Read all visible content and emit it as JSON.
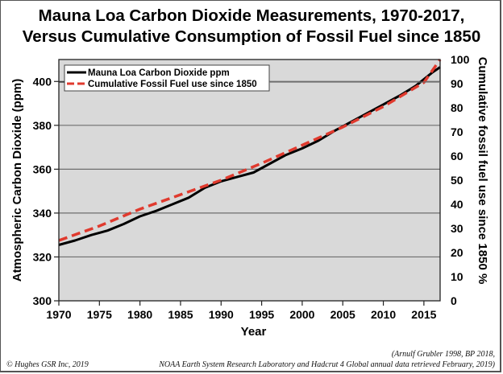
{
  "chart_data": {
    "type": "line",
    "title": "Mauna Loa Carbon Dioxide Measurements, 1970-2017,",
    "subtitle": "Versus Cumulative Consumption of Fossil Fuel since 1850",
    "xlabel": "Year",
    "ylabel": "Atmospheric Carbon Dioxide (ppm)",
    "y2label": "Cumulative fossil fuel use since 1850 %",
    "xlim": [
      1970,
      2017
    ],
    "ylim": [
      300,
      410
    ],
    "y2lim": [
      0,
      100
    ],
    "x_ticks": [
      "1970",
      "1975",
      "1980",
      "1985",
      "1990",
      "1995",
      "2000",
      "2005",
      "2010",
      "2015"
    ],
    "y_ticks": [
      "300",
      "320",
      "340",
      "360",
      "380",
      "400"
    ],
    "y2_ticks": [
      "0",
      "10",
      "20",
      "30",
      "40",
      "50",
      "60",
      "70",
      "80",
      "90",
      "100"
    ],
    "grid": "horizontal",
    "legend_position": "top-left",
    "series": [
      {
        "name": "Mauna Loa Carbon Dioxide ppm",
        "axis": "left",
        "color": "#000000",
        "style": "solid",
        "x": [
          1970,
          1972,
          1974,
          1976,
          1978,
          1980,
          1982,
          1984,
          1986,
          1988,
          1990,
          1992,
          1994,
          1996,
          1998,
          2000,
          2002,
          2004,
          2006,
          2008,
          2010,
          2012,
          2014,
          2016,
          2017
        ],
        "values": [
          325.5,
          327.5,
          330.0,
          332.0,
          335.0,
          338.5,
          341.0,
          344.0,
          347.0,
          351.5,
          354.5,
          356.5,
          358.5,
          362.5,
          366.5,
          369.5,
          373.0,
          377.5,
          381.5,
          385.5,
          389.5,
          393.5,
          398.0,
          404.0,
          406.5
        ]
      },
      {
        "name": "Cumulative Fossil Fuel use since 1850",
        "axis": "right",
        "color": "#e03a2e",
        "style": "dashed",
        "x": [
          1970,
          1975,
          1980,
          1985,
          1990,
          1995,
          2000,
          2005,
          2010,
          2015,
          2017
        ],
        "values": [
          25.0,
          31.0,
          38.0,
          44.0,
          50.0,
          57.0,
          64.5,
          72.0,
          80.5,
          90.5,
          100.0
        ]
      }
    ]
  },
  "footer": {
    "credit": "© Hughes GSR Inc, 2019",
    "source_line1": "(Arnulf Grubler 1998, BP 2018,",
    "source_line2": "NOAA Earth System Research Laboratory and Hadcrut 4 Global annual data retrieved February, 2019)"
  },
  "colors": {
    "plot_background": "#d9d9d9",
    "gridline": "#6e6e6e",
    "co2_line": "#000000",
    "fossil_line": "#e03a2e"
  }
}
